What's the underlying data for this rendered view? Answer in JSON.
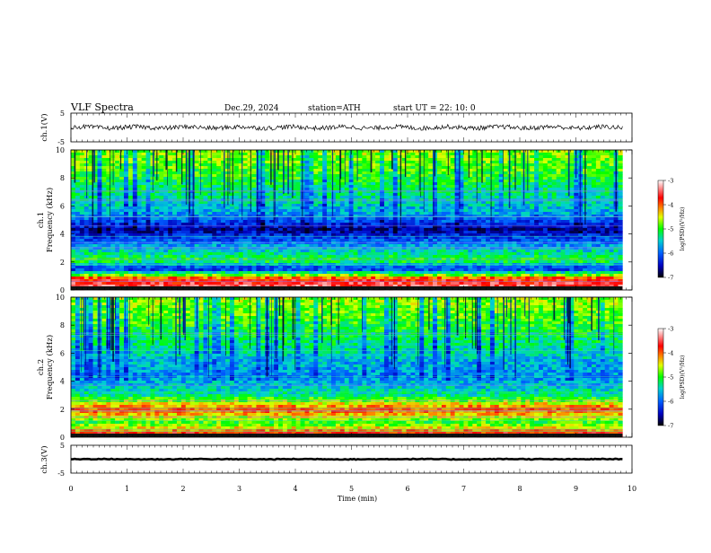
{
  "header": {
    "title": "VLF  Spectra",
    "date": "Dec.29, 2024",
    "station": "station=ATH",
    "start_ut": "start  UT  =    22: 10: 0"
  },
  "chart_data": [
    {
      "type": "line",
      "ylabel": "ch.1(V)",
      "ylim": [
        -5,
        5
      ],
      "yticks": [
        "5",
        "-5"
      ],
      "xlim": [
        0,
        10
      ],
      "description_values": {
        "baseline_v": 0,
        "noise_amplitude_v": 0.8
      }
    },
    {
      "type": "heatmap",
      "ylabel_top": "ch.1",
      "ylabel": "Frequency  (kHz)",
      "ylim": [
        0,
        10
      ],
      "yticks": [
        "0",
        "2",
        "4",
        "6",
        "8",
        "10"
      ],
      "xlim": [
        0,
        10
      ],
      "colorbar": {
        "label": "log(PSD)(V²/Hz)",
        "ticks": [
          "-3",
          "-4",
          "-5",
          "-6",
          "-7"
        ],
        "range": [
          -7,
          -3
        ]
      },
      "bands_khz": [
        {
          "freq": 0.0,
          "level": -3.3
        },
        {
          "freq": 0.8,
          "level": -3.8
        },
        {
          "freq": 1.5,
          "level": -6.3
        },
        {
          "freq": 2.1,
          "level": -5.0
        },
        {
          "freq": 3.0,
          "level": -5.6
        },
        {
          "freq": 4.3,
          "level": -6.6
        },
        {
          "freq": 5.4,
          "level": -5.7
        },
        {
          "freq": 6.5,
          "level": -5.4
        },
        {
          "freq": 8.5,
          "level": -4.9
        },
        {
          "freq": 9.8,
          "level": -4.7
        }
      ]
    },
    {
      "type": "heatmap",
      "ylabel_top": "ch.2",
      "ylabel": "Frequency  (kHz)",
      "ylim": [
        0,
        10
      ],
      "yticks": [
        "0",
        "2",
        "4",
        "6",
        "8",
        "10"
      ],
      "xlim": [
        0,
        10
      ],
      "colorbar": {
        "label": "log(PSD)(V²/Hz)",
        "ticks": [
          "-3",
          "-4",
          "-5",
          "-6",
          "-7"
        ],
        "range": [
          -7,
          -3
        ]
      },
      "bands_khz": [
        {
          "freq": 0.0,
          "level": -3.3
        },
        {
          "freq": 1.0,
          "level": -5.0
        },
        {
          "freq": 2.0,
          "level": -3.9
        },
        {
          "freq": 3.0,
          "level": -5.3
        },
        {
          "freq": 4.3,
          "level": -5.8
        },
        {
          "freq": 5.5,
          "level": -5.6
        },
        {
          "freq": 6.5,
          "level": -5.3
        },
        {
          "freq": 8.5,
          "level": -4.9
        },
        {
          "freq": 9.8,
          "level": -4.7
        }
      ]
    },
    {
      "type": "line",
      "ylabel": "ch.3(V)",
      "ylim": [
        -5,
        5
      ],
      "yticks": [
        "5",
        "-5"
      ],
      "xlim": [
        0,
        10
      ],
      "description_values": {
        "baseline_v": 0,
        "noise_amplitude_v": 0.15
      }
    }
  ],
  "xaxis": {
    "label": "Time  (min)",
    "ticks": [
      "0",
      "1",
      "2",
      "3",
      "4",
      "5",
      "6",
      "7",
      "8",
      "9",
      "10"
    ],
    "data_end_min": 9.83
  },
  "colors": {
    "scale": [
      "#000080",
      "#0000ff",
      "#0090ff",
      "#00e0e0",
      "#00ff00",
      "#ffff00",
      "#ff8000",
      "#ff0000",
      "#ffffff"
    ]
  }
}
